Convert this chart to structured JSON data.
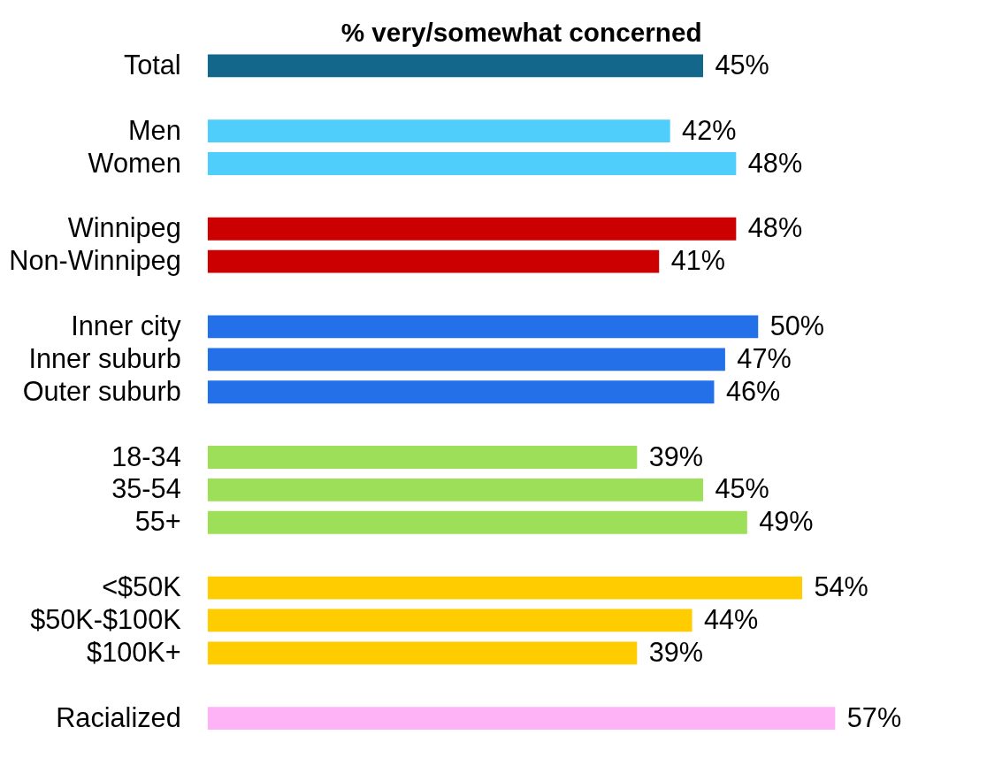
{
  "chart_data": {
    "type": "bar",
    "orientation": "horizontal",
    "title": "% very/somewhat concerned",
    "categories": [
      "Total",
      null,
      "Men",
      "Women",
      null,
      "Winnipeg",
      "Non-Winnipeg",
      null,
      "Inner city",
      "Inner suburb",
      "Outer suburb",
      null,
      "18-34",
      "35-54",
      "55+",
      null,
      "<$50K",
      "$50K-$100K",
      "$100K+",
      null,
      "Racialized"
    ],
    "values": [
      45,
      null,
      42,
      48,
      null,
      48,
      41,
      null,
      50,
      47,
      46,
      null,
      39,
      45,
      49,
      null,
      54,
      44,
      39,
      null,
      57
    ],
    "value_labels": [
      "45%",
      null,
      "42%",
      "48%",
      null,
      "48%",
      "41%",
      null,
      "50%",
      "47%",
      "46%",
      null,
      "39%",
      "45%",
      "49%",
      null,
      "54%",
      "44%",
      "39%",
      null,
      "57%"
    ],
    "colors": [
      "#13678a",
      null,
      "#50cefb",
      "#50cefb",
      null,
      "#cc0000",
      "#cc0000",
      null,
      "#2370e8",
      "#2370e8",
      "#2370e8",
      null,
      "#9ddf58",
      "#9ddf58",
      "#9ddf58",
      null,
      "#ffcc00",
      "#ffcc00",
      "#ffcc00",
      null,
      "#ffb3f7"
    ]
  }
}
